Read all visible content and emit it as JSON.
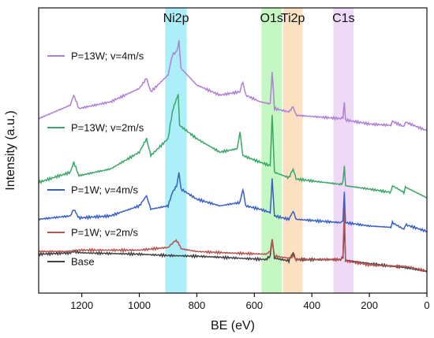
{
  "chart_data": {
    "type": "line",
    "xlabel": "BE (eV)",
    "ylabel": "Intensity (a.u.)",
    "xlim": [
      1350,
      0
    ],
    "x_reversed": true,
    "xticks": [
      1200,
      1000,
      800,
      600,
      400,
      200,
      0
    ],
    "yticks_shown": false,
    "grid": false,
    "legend_placement": "inline-left",
    "regions": [
      {
        "label": "Ni2p",
        "from": 910,
        "to": 835,
        "color": "#7fe6f5"
      },
      {
        "label": "O1s",
        "from": 575,
        "to": 505,
        "color": "#a4f2a0"
      },
      {
        "label": "Ti2p",
        "from": 500,
        "to": 432,
        "color": "#f9cfa2"
      },
      {
        "label": "C1s",
        "from": 325,
        "to": 255,
        "color": "#e5c4f3"
      }
    ],
    "series": [
      {
        "name": "Base",
        "color": "#404040",
        "baseline": 0.02,
        "points": [
          [
            1350,
            0.58
          ],
          [
            1240,
            0.6
          ],
          [
            1228,
            0.62
          ],
          [
            1200,
            0.6
          ],
          [
            1000,
            0.58
          ],
          [
            900,
            0.56
          ],
          [
            800,
            0.55
          ],
          [
            700,
            0.53
          ],
          [
            560,
            0.5
          ],
          [
            545,
            0.55
          ],
          [
            538,
            0.8
          ],
          [
            530,
            0.52
          ],
          [
            480,
            0.48
          ],
          [
            465,
            0.6
          ],
          [
            455,
            0.5
          ],
          [
            300,
            0.5
          ],
          [
            292,
            0.54
          ],
          [
            287,
            1.05
          ],
          [
            283,
            0.49
          ],
          [
            200,
            0.44
          ],
          [
            120,
            0.4
          ],
          [
            75,
            0.38
          ],
          [
            0,
            0.32
          ]
        ]
      },
      {
        "name": "P=1W; v=2m/s",
        "color": "#b5534f",
        "baseline": 0.62,
        "points": [
          [
            1350,
            0.62
          ],
          [
            1240,
            0.62
          ],
          [
            1228,
            0.64
          ],
          [
            1200,
            0.64
          ],
          [
            1000,
            0.64
          ],
          [
            900,
            0.68
          ],
          [
            875,
            0.78
          ],
          [
            865,
            0.76
          ],
          [
            855,
            0.66
          ],
          [
            800,
            0.62
          ],
          [
            700,
            0.6
          ],
          [
            560,
            0.58
          ],
          [
            545,
            0.62
          ],
          [
            538,
            0.8
          ],
          [
            530,
            0.55
          ],
          [
            480,
            0.52
          ],
          [
            465,
            0.56
          ],
          [
            455,
            0.5
          ],
          [
            300,
            0.5
          ],
          [
            292,
            0.55
          ],
          [
            287,
            1.3
          ],
          [
            283,
            0.48
          ],
          [
            200,
            0.42
          ],
          [
            120,
            0.4
          ],
          [
            75,
            0.4
          ],
          [
            0,
            0.33
          ]
        ]
      },
      {
        "name": "P=1W; v=4m/s",
        "color": "#3860c4",
        "baseline": 1.1,
        "points": [
          [
            1350,
            1.1
          ],
          [
            1240,
            1.15
          ],
          [
            1228,
            1.25
          ],
          [
            1210,
            1.12
          ],
          [
            1100,
            1.15
          ],
          [
            1000,
            1.3
          ],
          [
            975,
            1.45
          ],
          [
            960,
            1.25
          ],
          [
            900,
            1.3
          ],
          [
            885,
            1.5
          ],
          [
            870,
            1.6
          ],
          [
            862,
            1.8
          ],
          [
            855,
            1.55
          ],
          [
            800,
            1.4
          ],
          [
            720,
            1.3
          ],
          [
            650,
            1.35
          ],
          [
            640,
            1.55
          ],
          [
            630,
            1.3
          ],
          [
            580,
            1.25
          ],
          [
            545,
            1.2
          ],
          [
            538,
            1.7
          ],
          [
            530,
            1.15
          ],
          [
            480,
            1.1
          ],
          [
            465,
            1.22
          ],
          [
            455,
            1.1
          ],
          [
            300,
            1.05
          ],
          [
            292,
            1.08
          ],
          [
            287,
            1.5
          ],
          [
            283,
            1.05
          ],
          [
            200,
            1.0
          ],
          [
            125,
            0.98
          ],
          [
            120,
            1.05
          ],
          [
            80,
            0.95
          ],
          [
            75,
            1.02
          ],
          [
            0,
            0.92
          ]
        ]
      },
      {
        "name": "P=13W; v=2m/s",
        "color": "#3ba66a",
        "baseline": 1.65,
        "points": [
          [
            1350,
            1.65
          ],
          [
            1240,
            1.8
          ],
          [
            1228,
            1.95
          ],
          [
            1210,
            1.75
          ],
          [
            1100,
            1.85
          ],
          [
            1000,
            2.1
          ],
          [
            975,
            2.3
          ],
          [
            960,
            2.05
          ],
          [
            900,
            2.3
          ],
          [
            885,
            2.7
          ],
          [
            875,
            2.85
          ],
          [
            865,
            2.95
          ],
          [
            860,
            2.5
          ],
          [
            800,
            2.3
          ],
          [
            720,
            2.1
          ],
          [
            660,
            2.15
          ],
          [
            650,
            2.4
          ],
          [
            640,
            2.05
          ],
          [
            580,
            1.95
          ],
          [
            545,
            1.9
          ],
          [
            538,
            2.65
          ],
          [
            530,
            1.8
          ],
          [
            480,
            1.72
          ],
          [
            465,
            1.85
          ],
          [
            455,
            1.7
          ],
          [
            300,
            1.62
          ],
          [
            292,
            1.65
          ],
          [
            287,
            1.9
          ],
          [
            283,
            1.6
          ],
          [
            200,
            1.55
          ],
          [
            125,
            1.5
          ],
          [
            120,
            1.6
          ],
          [
            80,
            1.5
          ],
          [
            75,
            1.58
          ],
          [
            0,
            1.42
          ]
        ]
      },
      {
        "name": "P=13W; v=4m/s",
        "color": "#b07fd6",
        "baseline": 2.6,
        "points": [
          [
            1350,
            2.6
          ],
          [
            1240,
            2.8
          ],
          [
            1228,
            2.95
          ],
          [
            1210,
            2.75
          ],
          [
            1100,
            2.85
          ],
          [
            1000,
            3.05
          ],
          [
            975,
            3.2
          ],
          [
            960,
            3.0
          ],
          [
            900,
            3.25
          ],
          [
            885,
            3.55
          ],
          [
            870,
            3.6
          ],
          [
            862,
            3.75
          ],
          [
            855,
            3.35
          ],
          [
            800,
            3.1
          ],
          [
            720,
            2.95
          ],
          [
            650,
            3.0
          ],
          [
            640,
            3.15
          ],
          [
            630,
            2.95
          ],
          [
            580,
            2.85
          ],
          [
            545,
            2.82
          ],
          [
            538,
            3.3
          ],
          [
            530,
            2.75
          ],
          [
            480,
            2.7
          ],
          [
            465,
            2.78
          ],
          [
            455,
            2.65
          ],
          [
            300,
            2.6
          ],
          [
            292,
            2.62
          ],
          [
            287,
            2.85
          ],
          [
            283,
            2.58
          ],
          [
            200,
            2.52
          ],
          [
            125,
            2.5
          ],
          [
            120,
            2.56
          ],
          [
            80,
            2.48
          ],
          [
            75,
            2.55
          ],
          [
            0,
            2.42
          ]
        ]
      }
    ]
  }
}
